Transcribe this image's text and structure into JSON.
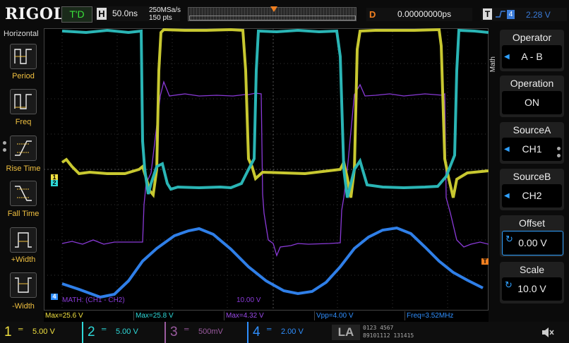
{
  "header": {
    "brand": "RIGOL",
    "trigger_status": "T'D",
    "horizontal_label": "H",
    "timebase": "50.0ns",
    "sample_rate": "250MSa/s",
    "memory_depth": "150  pts",
    "delay_label": "D",
    "delay": "0.00000000ps",
    "trigger_label": "T",
    "trigger_edge": "⌐",
    "trigger_source": "4",
    "trigger_level": "2.28 V"
  },
  "left_menu": {
    "title": "Horizontal",
    "items": [
      {
        "label": "Period"
      },
      {
        "label": "Freq"
      },
      {
        "label": "Rise Time"
      },
      {
        "label": "Fall Time"
      },
      {
        "label": "+Width"
      },
      {
        "label": "-Width"
      }
    ]
  },
  "screen": {
    "math_label": "MATH:  (CH1 - CH2)",
    "math_scale": "10.00 V",
    "markers": {
      "ch1": "1",
      "ch2": "2",
      "ch4": "4",
      "trig": "T"
    }
  },
  "measurements": [
    {
      "text": "Max=25.6 V",
      "color": "#f0e040"
    },
    {
      "text": "Max=25.8 V",
      "color": "#2ed9d9"
    },
    {
      "text": "Max=4.32 V",
      "color": "#9a4ae8"
    },
    {
      "text": "Vpp=4.00 V",
      "color": "#2f8fff"
    },
    {
      "text": "Freq=3.52MHz",
      "color": "#2f8fff"
    }
  ],
  "channels": [
    {
      "num": "1",
      "coupling": "═",
      "scale": "5.00 V",
      "color": "#f0e040"
    },
    {
      "num": "2",
      "coupling": "═",
      "scale": "5.00 V",
      "color": "#2ed9d9"
    },
    {
      "num": "3",
      "coupling": "═",
      "scale": "500mV",
      "color": "#9b5ba0"
    },
    {
      "num": "4",
      "coupling": "═",
      "scale": "2.00 V",
      "color": "#2f8fff"
    }
  ],
  "digital": {
    "label": "LA",
    "row1": "0123  4567",
    "row2": "89101112  131415"
  },
  "right_menu": {
    "side_label": "Math",
    "items": [
      {
        "header": "Operator",
        "value": "A - B"
      },
      {
        "header": "Operation",
        "value": "ON"
      },
      {
        "header": "SourceA",
        "value": "CH1"
      },
      {
        "header": "SourceB",
        "value": "CH2"
      },
      {
        "header": "Offset",
        "value": "0.00 V"
      },
      {
        "header": "Scale",
        "value": "10.0 V"
      }
    ]
  },
  "colors": {
    "ch1": "#f0e040",
    "ch2": "#2ed9d9",
    "math": "#8a3ad8",
    "ch4": "#2f8fff",
    "accent": "#f07f20"
  }
}
